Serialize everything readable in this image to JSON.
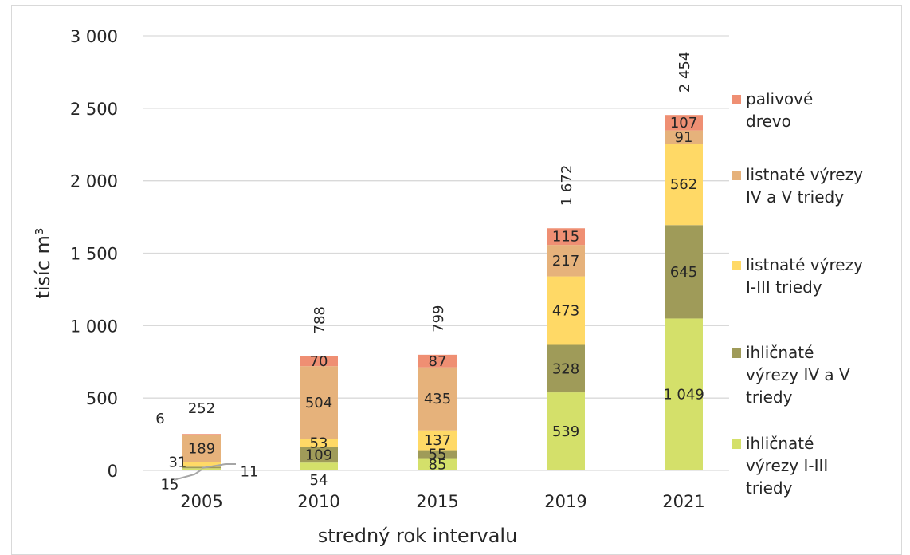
{
  "chart_data": {
    "type": "bar",
    "stacked": true,
    "categories": [
      "2005",
      "2010",
      "2015",
      "2019",
      "2021"
    ],
    "xlabel": "stredný rok intervalu",
    "ylabel": "tisíc m³",
    "ylim": [
      0,
      3000
    ],
    "yticks": [
      0,
      500,
      1000,
      1500,
      2000,
      2500,
      3000
    ],
    "ytick_labels": [
      "0",
      "500",
      "1 000",
      "1 500",
      "2 000",
      "2 500",
      "3 000"
    ],
    "grid": true,
    "legend_position": "right",
    "series": [
      {
        "name": "ihličnaté výrezy I-III triedy",
        "color": "#d4e06a",
        "values": [
          15,
          54,
          85,
          539,
          1049
        ],
        "labels": [
          "15",
          "54",
          "85",
          "539",
          "1 049"
        ]
      },
      {
        "name": "ihličnaté výrezy IV a V triedy",
        "color": "#9f9b59",
        "values": [
          11,
          109,
          55,
          328,
          645
        ],
        "labels": [
          "11",
          "109",
          "55",
          "328",
          "645"
        ]
      },
      {
        "name": "listnaté výrezy I-III triedy",
        "color": "#ffd966",
        "values": [
          31,
          53,
          137,
          473,
          562
        ],
        "labels": [
          "31",
          "53",
          "137",
          "473",
          "562"
        ]
      },
      {
        "name": "listnaté výrezy IV a V triedy",
        "color": "#e6b27b",
        "values": [
          189,
          504,
          435,
          217,
          91
        ],
        "labels": [
          "189",
          "504",
          "435",
          "217",
          "91"
        ]
      },
      {
        "name": "palivové drevo",
        "color": "#ef8f73",
        "values": [
          6,
          70,
          87,
          115,
          107
        ],
        "labels": [
          "6",
          "70",
          "87",
          "115",
          "107"
        ]
      }
    ],
    "totals": [
      252,
      788,
      799,
      1672,
      2454
    ],
    "total_labels": [
      "252",
      "788",
      "799",
      "1 672",
      "2 454"
    ]
  },
  "legend": [
    {
      "lines": [
        "palivové",
        "drevo"
      ],
      "color": "#ef8f73"
    },
    {
      "lines": [
        "listnaté výrezy",
        "IV a V triedy"
      ],
      "color": "#e6b27b"
    },
    {
      "lines": [
        "listnaté výrezy",
        "I-III triedy"
      ],
      "color": "#ffd966"
    },
    {
      "lines": [
        "ihličnaté",
        "výrezy IV a V",
        "triedy"
      ],
      "color": "#9f9b59"
    },
    {
      "lines": [
        "ihličnaté",
        "výrezy I-III",
        "triedy"
      ],
      "color": "#d4e06a"
    }
  ]
}
